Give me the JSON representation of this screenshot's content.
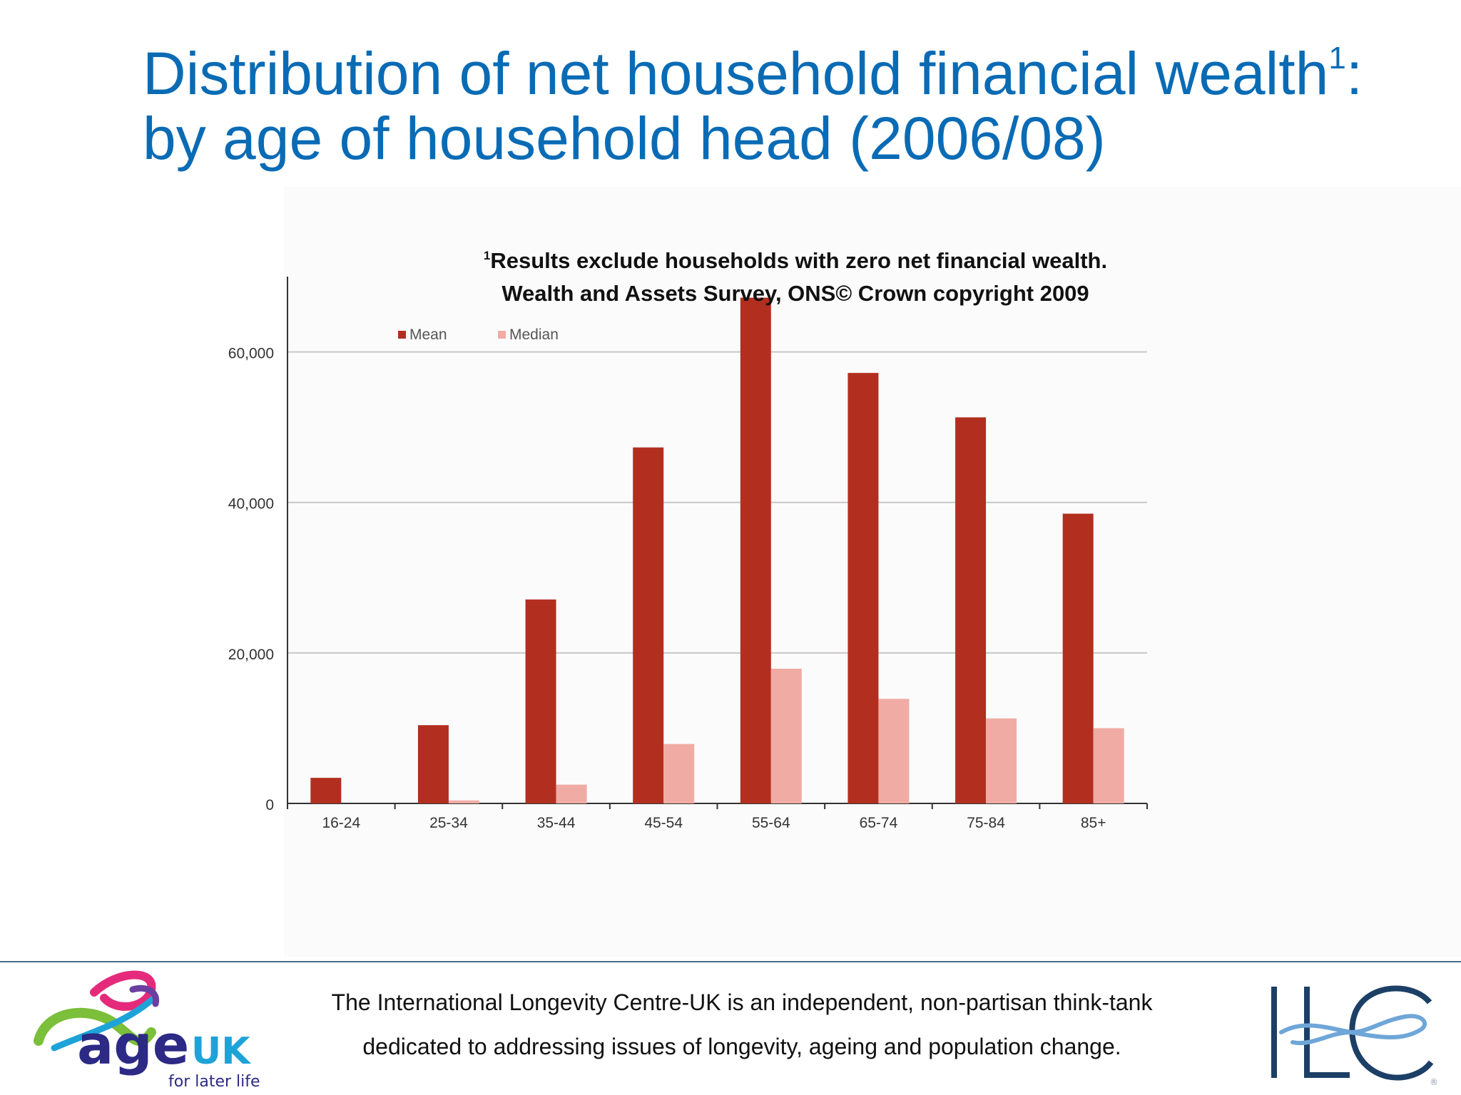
{
  "title": {
    "line1": "Distribution of net household financial wealth",
    "line1_sup": "1",
    "line1_end": ":",
    "line2": "by age of household head (2006/08)"
  },
  "note": {
    "marker": "1",
    "line1": "Results exclude households with zero net financial wealth.",
    "line2": "Wealth and Assets Survey, ONS© Crown copyright 2009"
  },
  "footer": {
    "line1": "The International Longevity Centre-UK is an independent, non-partisan think-tank",
    "line2": "dedicated to addressing issues of longevity, ageing and population change."
  },
  "logos": {
    "left_word": "age",
    "left_word2": "UK",
    "left_tagline": "for later life",
    "right_word": "ILC",
    "right_mark": "®"
  },
  "colors": {
    "title": "#0a6bb5",
    "mean": "#b22f20",
    "median": "#f0aca4",
    "grid": "#c8c8c8",
    "axis": "#333333",
    "tick_label": "#333333",
    "footer_rule": "#4a6c8a"
  },
  "chart_data": {
    "type": "bar",
    "title": "",
    "xlabel": "",
    "ylabel": "",
    "categories": [
      "16-24",
      "25-34",
      "35-44",
      "45-54",
      "55-64",
      "65-74",
      "75-84",
      "85+"
    ],
    "series": [
      {
        "name": "Mean",
        "values": [
          3400,
          10400,
          27100,
          47300,
          67200,
          57200,
          51300,
          38500
        ]
      },
      {
        "name": "Median",
        "values": [
          0,
          400,
          2500,
          7900,
          17900,
          13900,
          11300,
          10000
        ]
      }
    ],
    "ylim": [
      0,
      70000
    ],
    "yticks": [
      0,
      20000,
      40000,
      60000
    ],
    "ytick_labels": [
      "0",
      "20,000",
      "40,000",
      "60,000"
    ],
    "grid": true,
    "legend": "top-left"
  }
}
